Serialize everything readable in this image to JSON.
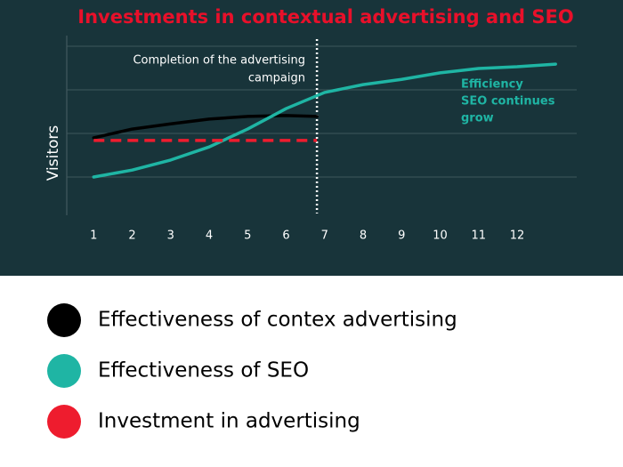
{
  "chart_data": {
    "type": "line",
    "title": "Investments in contextual advertising and SEO",
    "y_label": "Visitors",
    "xlim": [
      0.3,
      13.55
    ],
    "xticks": [
      1,
      2,
      3,
      4,
      5,
      6,
      7,
      8,
      9,
      10,
      11,
      12
    ],
    "ylim": [
      0,
      4
    ],
    "ygrid": [
      1,
      2,
      3,
      4
    ],
    "grid": true,
    "series": [
      {
        "name": "Effectiveness of contex advertising",
        "color": "#000000",
        "x": [
          1,
          2,
          3,
          4,
          5,
          6,
          6.8
        ],
        "values": [
          1.9,
          2.1,
          2.22,
          2.33,
          2.39,
          2.41,
          2.39
        ]
      },
      {
        "name": "Effectiveness of SEO",
        "color": "#1fb5a4",
        "x": [
          1,
          2,
          3,
          4,
          5,
          6,
          7,
          8,
          9,
          10,
          11,
          12,
          13
        ],
        "values": [
          1.0,
          1.16,
          1.39,
          1.69,
          2.1,
          2.57,
          2.94,
          3.12,
          3.24,
          3.39,
          3.49,
          3.53,
          3.59
        ]
      },
      {
        "name": "Investment in advertising",
        "color": "#ee1c2e",
        "dashed": true,
        "x": [
          1,
          6.8
        ],
        "values": [
          1.84,
          1.84
        ]
      }
    ],
    "campaign_end": 6.8,
    "annotations": [
      {
        "lines": [
          "Completion of the advertising",
          "campaign"
        ],
        "color": "#ffffff"
      },
      {
        "lines": [
          "Efficiency",
          "SEO continues",
          "grow"
        ],
        "color": "#1fb5a4"
      }
    ]
  }
}
